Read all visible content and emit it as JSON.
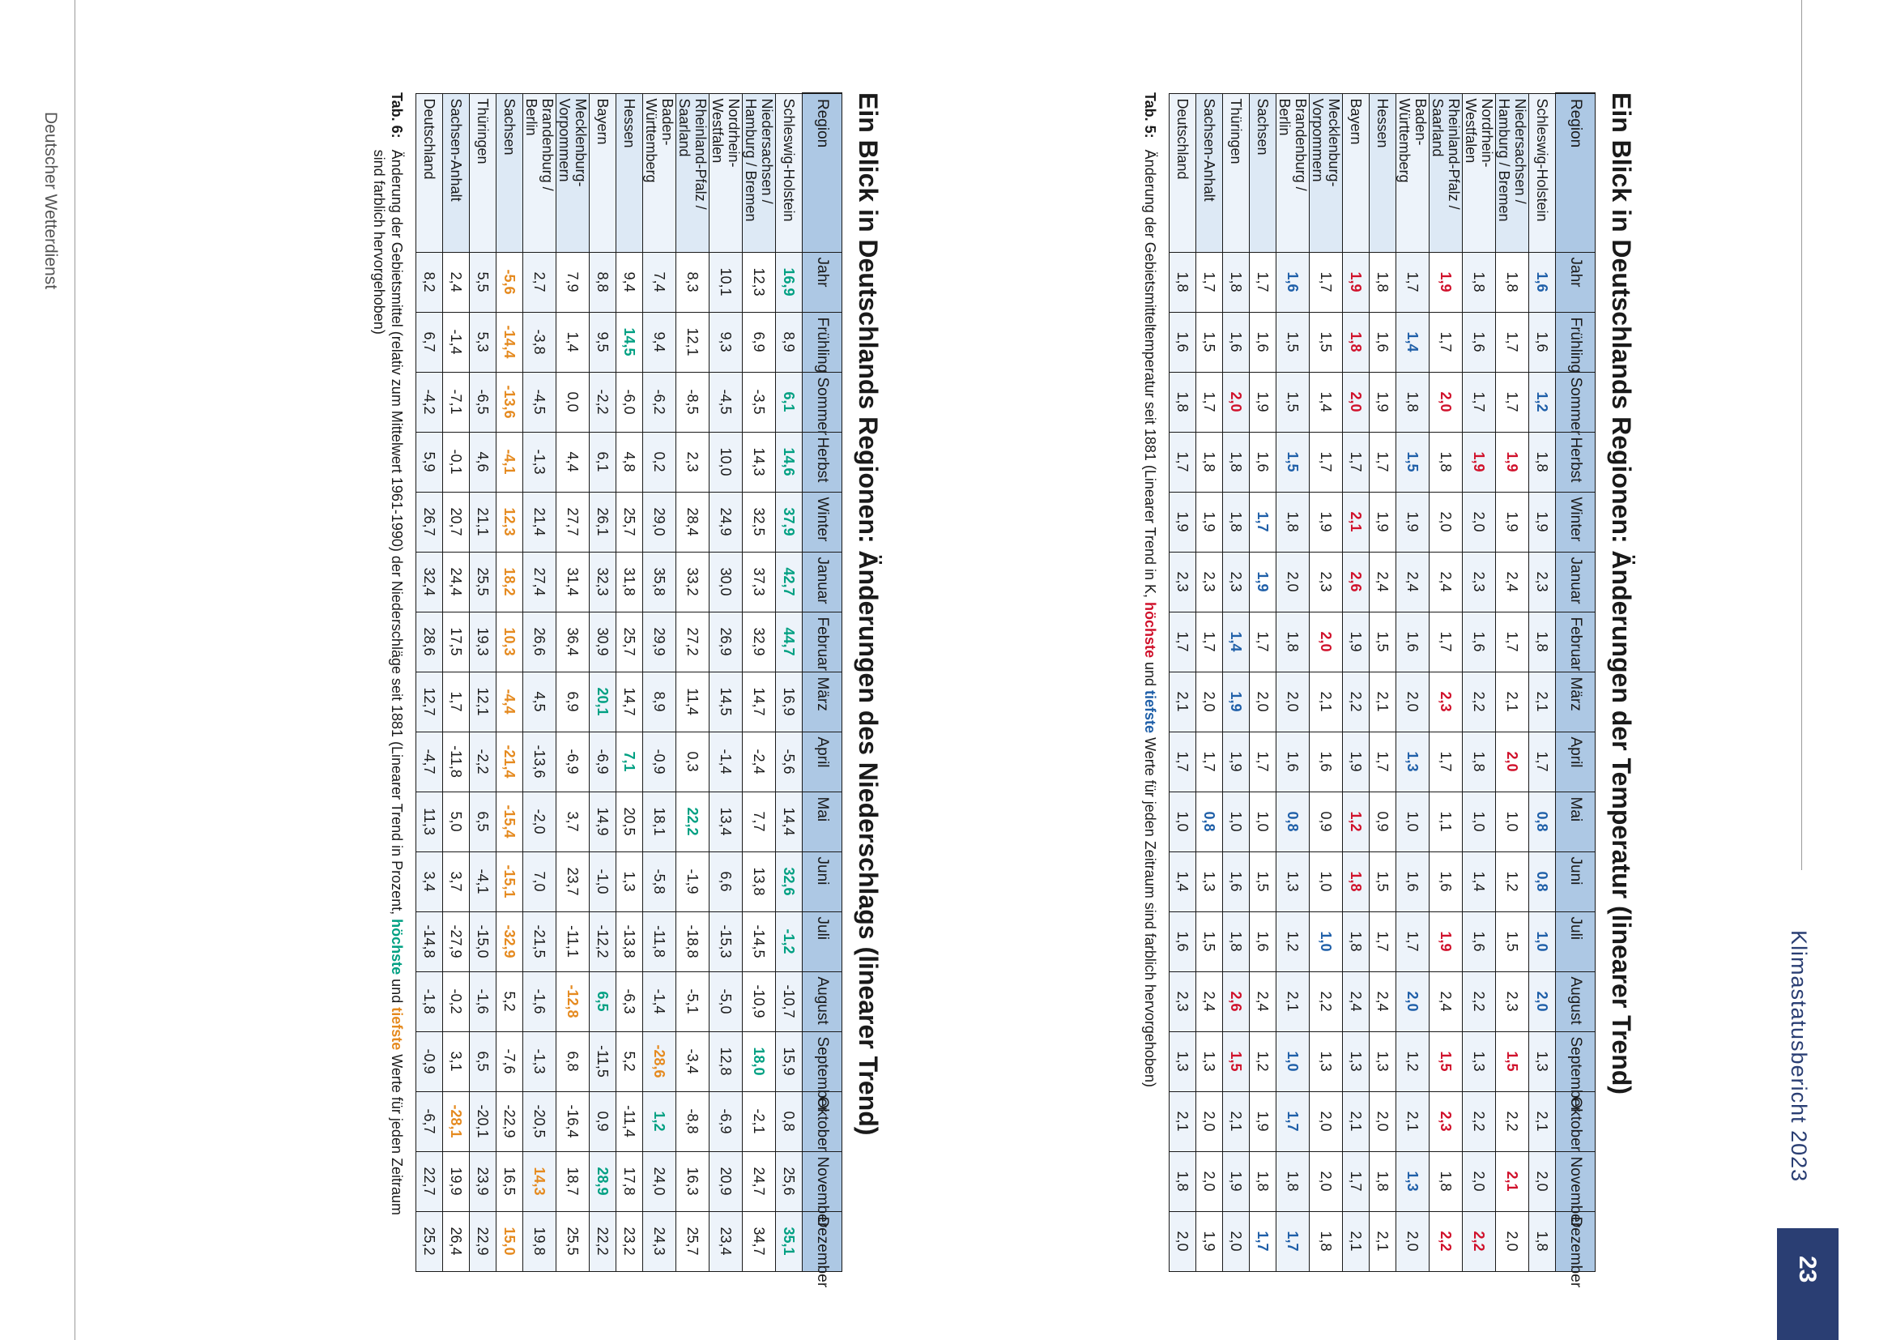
{
  "page": {
    "header_title": "Klimastatusbericht 2023",
    "page_number": "23",
    "footer": "Deutscher Wetterdienst"
  },
  "table5": {
    "title": "Ein Blick in Deutschlands Regionen: Änderungen der Temperatur (linearer Trend)",
    "columns": [
      "Region",
      "Jahr",
      "Frühling",
      "Sommer",
      "Herbst",
      "Winter",
      "Januar",
      "Februar",
      "März",
      "April",
      "Mai",
      "Juni",
      "Juli",
      "August",
      "September",
      "Oktober",
      "November",
      "Dezember"
    ],
    "rows": [
      {
        "region": [
          "Schleswig-Holstein"
        ],
        "values": [
          "1,6",
          "1,6",
          "1,2",
          "1,8",
          "1,9",
          "2,3",
          "1,8",
          "2,1",
          "1,7",
          "0,8",
          "0,8",
          "1,0",
          "2,0",
          "1,3",
          "2,1",
          "2,0",
          "1,8"
        ],
        "marks": [
          "lo",
          "",
          "lo",
          "",
          "",
          "",
          "",
          "",
          "",
          "lo",
          "lo",
          "lo",
          "lo",
          "",
          "",
          "",
          ""
        ]
      },
      {
        "region": [
          "Niedersachsen /",
          "Hamburg / Bremen"
        ],
        "values": [
          "1,8",
          "1,7",
          "1,7",
          "1,9",
          "1,9",
          "2,4",
          "1,7",
          "2,1",
          "2,0",
          "1,0",
          "1,2",
          "1,5",
          "2,3",
          "1,5",
          "2,2",
          "2,1",
          "2,0"
        ],
        "marks": [
          "",
          "",
          "",
          "hi",
          "",
          "",
          "",
          "",
          "hi",
          "",
          "",
          "",
          "",
          "hi",
          "",
          "hi",
          ""
        ]
      },
      {
        "region": [
          "Nordrhein-",
          "Westfalen"
        ],
        "values": [
          "1,8",
          "1,6",
          "1,7",
          "1,9",
          "2,0",
          "2,3",
          "1,6",
          "2,2",
          "1,8",
          "1,0",
          "1,4",
          "1,6",
          "2,2",
          "1,3",
          "2,2",
          "2,0",
          "2,2"
        ],
        "marks": [
          "",
          "",
          "",
          "hi",
          "",
          "",
          "",
          "",
          "",
          "",
          "",
          "",
          "",
          "",
          "",
          "",
          "hi"
        ]
      },
      {
        "region": [
          "Rheinland-Pfalz /",
          "Saarland"
        ],
        "values": [
          "1,9",
          "1,7",
          "2,0",
          "1,8",
          "2,0",
          "2,4",
          "1,7",
          "2,3",
          "1,7",
          "1,1",
          "1,6",
          "1,9",
          "2,4",
          "1,5",
          "2,3",
          "1,8",
          "2,2"
        ],
        "marks": [
          "hi",
          "",
          "hi",
          "",
          "",
          "",
          "",
          "hi",
          "",
          "",
          "",
          "hi",
          "",
          "hi",
          "hi",
          "",
          "hi"
        ]
      },
      {
        "region": [
          "Baden-",
          "Württemberg"
        ],
        "values": [
          "1,7",
          "1,4",
          "1,8",
          "1,5",
          "1,9",
          "2,4",
          "1,6",
          "2,0",
          "1,3",
          "1,0",
          "1,6",
          "1,7",
          "2,0",
          "1,2",
          "2,1",
          "1,3",
          "2,0"
        ],
        "marks": [
          "",
          "lo",
          "",
          "lo",
          "",
          "",
          "",
          "",
          "lo",
          "",
          "",
          "",
          "lo",
          "",
          "",
          "lo",
          ""
        ]
      },
      {
        "region": [
          "Hessen"
        ],
        "values": [
          "1,8",
          "1,6",
          "1,9",
          "1,7",
          "1,9",
          "2,4",
          "1,5",
          "2,1",
          "1,7",
          "0,9",
          "1,5",
          "1,7",
          "2,4",
          "1,3",
          "2,0",
          "1,8",
          "2,1"
        ],
        "marks": [
          "",
          "",
          "",
          "",
          "",
          "",
          "",
          "",
          "",
          "",
          "",
          "",
          "",
          "",
          "",
          "",
          ""
        ]
      },
      {
        "region": [
          "Bayern"
        ],
        "values": [
          "1,9",
          "1,8",
          "2,0",
          "1,7",
          "2,1",
          "2,6",
          "1,9",
          "2,2",
          "1,9",
          "1,2",
          "1,8",
          "1,8",
          "2,4",
          "1,3",
          "2,1",
          "1,7",
          "2,1"
        ],
        "marks": [
          "hi",
          "hi",
          "hi",
          "",
          "hi",
          "hi",
          "",
          "",
          "",
          "hi",
          "hi",
          "",
          "",
          "",
          "",
          "",
          ""
        ]
      },
      {
        "region": [
          "Mecklenburg-",
          "Vorpommern"
        ],
        "values": [
          "1,7",
          "1,5",
          "1,4",
          "1,7",
          "1,9",
          "2,3",
          "2,0",
          "2,1",
          "1,6",
          "0,9",
          "1,0",
          "1,0",
          "2,2",
          "1,3",
          "2,0",
          "2,0",
          "1,8"
        ],
        "marks": [
          "",
          "",
          "",
          "",
          "",
          "",
          "hi",
          "",
          "",
          "",
          "",
          "lo",
          "",
          "",
          "",
          "",
          ""
        ]
      },
      {
        "region": [
          "Brandenburg /",
          "Berlin"
        ],
        "values": [
          "1,6",
          "1,5",
          "1,5",
          "1,5",
          "1,8",
          "2,0",
          "1,8",
          "2,0",
          "1,6",
          "0,8",
          "1,3",
          "1,2",
          "2,1",
          "1,0",
          "1,7",
          "1,8",
          "1,7"
        ],
        "marks": [
          "lo",
          "",
          "",
          "lo",
          "",
          "",
          "",
          "",
          "",
          "lo",
          "",
          "",
          "",
          "lo",
          "lo",
          "",
          "lo"
        ]
      },
      {
        "region": [
          "Sachsen"
        ],
        "values": [
          "1,7",
          "1,6",
          "1,9",
          "1,6",
          "1,7",
          "1,9",
          "1,7",
          "2,0",
          "1,7",
          "1,0",
          "1,5",
          "1,6",
          "2,4",
          "1,2",
          "1,9",
          "1,8",
          "1,7"
        ],
        "marks": [
          "",
          "",
          "",
          "",
          "lo",
          "lo",
          "",
          "",
          "",
          "",
          "",
          "",
          "",
          "",
          "",
          "",
          "lo"
        ]
      },
      {
        "region": [
          "Thüringen"
        ],
        "values": [
          "1,8",
          "1,6",
          "2,0",
          "1,8",
          "1,8",
          "2,3",
          "1,4",
          "1,9",
          "1,9",
          "1,0",
          "1,6",
          "1,8",
          "2,6",
          "1,5",
          "2,1",
          "1,9",
          "2,0"
        ],
        "marks": [
          "",
          "",
          "hi",
          "",
          "",
          "",
          "lo",
          "lo",
          "",
          "",
          "",
          "",
          "hi",
          "hi",
          "",
          "",
          ""
        ]
      },
      {
        "region": [
          "Sachsen-Anhalt"
        ],
        "values": [
          "1,7",
          "1,5",
          "1,7",
          "1,8",
          "1,9",
          "2,3",
          "1,7",
          "2,0",
          "1,7",
          "0,8",
          "1,3",
          "1,5",
          "2,4",
          "1,3",
          "2,0",
          "2,0",
          "1,9"
        ],
        "marks": [
          "",
          "",
          "",
          "",
          "",
          "",
          "",
          "",
          "",
          "lo",
          "",
          "",
          "",
          "",
          "",
          "",
          ""
        ]
      },
      {
        "region": [
          "Deutschland"
        ],
        "values": [
          "1,8",
          "1,6",
          "1,8",
          "1,7",
          "1,9",
          "2,3",
          "1,7",
          "2,1",
          "1,7",
          "1,0",
          "1,4",
          "1,6",
          "2,3",
          "1,3",
          "2,1",
          "1,8",
          "2,0"
        ],
        "marks": [
          "",
          "",
          "",
          "",
          "",
          "",
          "",
          "",
          "",
          "",
          "",
          "",
          "",
          "",
          "",
          "",
          ""
        ]
      }
    ],
    "caption_label": "Tab. 5:",
    "caption_pre": "Änderung der Gebietsmitteltemperatur seit 1881 (Linearer Trend in K, ",
    "caption_high": "höchste",
    "caption_mid": " und ",
    "caption_low": "tiefste",
    "caption_post": " Werte für jeden Zeitraum sind farblich hervorgehoben)"
  },
  "table6": {
    "title": "Ein Blick in Deutschlands Regionen: Änderungen des Niederschlags (linearer Trend)",
    "columns": [
      "Region",
      "Jahr",
      "Frühling",
      "Sommer",
      "Herbst",
      "Winter",
      "Januar",
      "Februar",
      "März",
      "April",
      "Mai",
      "Juni",
      "Juli",
      "August",
      "September",
      "Oktober",
      "November",
      "Dezember"
    ],
    "rows": [
      {
        "region": [
          "Schleswig-Holstein"
        ],
        "values": [
          "16,9",
          "8,9",
          "6,1",
          "14,6",
          "37,9",
          "42,7",
          "44,7",
          "16,9",
          "-5,6",
          "14,4",
          "32,6",
          "-1,2",
          "-10,7",
          "15,9",
          "0,8",
          "25,6",
          "35,1"
        ],
        "marks": [
          "hi",
          "",
          "hi",
          "hi",
          "hi",
          "hi",
          "hi",
          "",
          "",
          "",
          "hi",
          "hi",
          "",
          "",
          "",
          "",
          "hi"
        ]
      },
      {
        "region": [
          "Niedersachsen /",
          "Hamburg / Bremen"
        ],
        "values": [
          "12,3",
          "6,9",
          "-3,5",
          "14,3",
          "32,5",
          "37,3",
          "32,9",
          "14,7",
          "-2,4",
          "7,7",
          "13,8",
          "-14,5",
          "-10,9",
          "18,0",
          "-2,1",
          "24,7",
          "34,7"
        ],
        "marks": [
          "",
          "",
          "",
          "",
          "",
          "",
          "",
          "",
          "",
          "",
          "",
          "",
          "",
          "hi",
          "",
          "",
          ""
        ]
      },
      {
        "region": [
          "Nordrhein-",
          "Westfalen"
        ],
        "values": [
          "10,1",
          "9,3",
          "-4,5",
          "10,0",
          "24,9",
          "30,0",
          "26,9",
          "14,5",
          "-1,4",
          "13,4",
          "6,6",
          "-15,3",
          "-5,0",
          "12,8",
          "-6,9",
          "20,9",
          "23,4"
        ],
        "marks": [
          "",
          "",
          "",
          "",
          "",
          "",
          "",
          "",
          "",
          "",
          "",
          "",
          "",
          "",
          "",
          "",
          ""
        ]
      },
      {
        "region": [
          "Rheinland-Pfalz /",
          "Saarland"
        ],
        "values": [
          "8,3",
          "12,1",
          "-8,5",
          "2,3",
          "28,4",
          "33,2",
          "27,2",
          "11,4",
          "0,3",
          "22,2",
          "-1,9",
          "-18,8",
          "-5,1",
          "-3,4",
          "-8,8",
          "16,3",
          "25,7"
        ],
        "marks": [
          "",
          "",
          "",
          "",
          "",
          "",
          "",
          "",
          "",
          "hi",
          "",
          "",
          "",
          "",
          "",
          "",
          ""
        ]
      },
      {
        "region": [
          "Baden-",
          "Württemberg"
        ],
        "values": [
          "7,4",
          "9,4",
          "-6,2",
          "0,2",
          "29,0",
          "35,8",
          "29,9",
          "8,9",
          "-0,9",
          "18,1",
          "-5,8",
          "-11,8",
          "-1,4",
          "-28,6",
          "1,2",
          "24,0",
          "24,3"
        ],
        "marks": [
          "",
          "",
          "",
          "",
          "",
          "",
          "",
          "",
          "",
          "",
          "",
          "",
          "",
          "lo",
          "hi",
          "",
          ""
        ]
      },
      {
        "region": [
          "Hessen"
        ],
        "values": [
          "9,4",
          "14,5",
          "-6,0",
          "4,8",
          "25,7",
          "31,8",
          "25,7",
          "14,7",
          "7,1",
          "20,5",
          "1,3",
          "-13,8",
          "-6,3",
          "5,2",
          "-11,4",
          "17,8",
          "23,2"
        ],
        "marks": [
          "",
          "hi",
          "",
          "",
          "",
          "",
          "",
          "",
          "hi",
          "",
          "",
          "",
          "",
          "",
          "",
          "",
          ""
        ]
      },
      {
        "region": [
          "Bayern"
        ],
        "values": [
          "8,8",
          "9,5",
          "-2,2",
          "6,1",
          "26,1",
          "32,3",
          "30,9",
          "20,1",
          "-6,9",
          "14,9",
          "-1,0",
          "-12,2",
          "6,5",
          "-11,5",
          "0,9",
          "28,9",
          "22,2"
        ],
        "marks": [
          "",
          "",
          "",
          "",
          "",
          "",
          "",
          "hi",
          "",
          "",
          "",
          "",
          "hi",
          "",
          "",
          "hi",
          ""
        ]
      },
      {
        "region": [
          "Mecklenburg-",
          "Vorpommern"
        ],
        "values": [
          "7,9",
          "1,4",
          "0,0",
          "4,4",
          "27,7",
          "31,4",
          "36,4",
          "6,9",
          "-6,9",
          "3,7",
          "23,7",
          "-11,1",
          "-12,8",
          "6,8",
          "-16,4",
          "18,7",
          "25,5"
        ],
        "marks": [
          "",
          "",
          "",
          "",
          "",
          "",
          "",
          "",
          "",
          "",
          "",
          "",
          "lo",
          "",
          "",
          "",
          ""
        ]
      },
      {
        "region": [
          "Brandenburg /",
          "Berlin"
        ],
        "values": [
          "2,7",
          "-3,8",
          "-4,5",
          "-1,3",
          "21,4",
          "27,4",
          "26,6",
          "4,5",
          "-13,6",
          "-2,0",
          "7,0",
          "-21,5",
          "-1,6",
          "-1,3",
          "-20,5",
          "14,3",
          "19,8"
        ],
        "marks": [
          "",
          "",
          "",
          "",
          "",
          "",
          "",
          "",
          "",
          "",
          "",
          "",
          "",
          "",
          "",
          "lo",
          ""
        ]
      },
      {
        "region": [
          "Sachsen"
        ],
        "values": [
          "-5,6",
          "-14,4",
          "-13,6",
          "-4,1",
          "12,3",
          "18,2",
          "10,3",
          "-4,4",
          "-21,4",
          "-15,4",
          "-15,1",
          "-32,9",
          "5,2",
          "-7,6",
          "-22,9",
          "16,5",
          "15,0"
        ],
        "marks": [
          "lo",
          "lo",
          "lo",
          "lo",
          "lo",
          "lo",
          "lo",
          "lo",
          "lo",
          "lo",
          "lo",
          "lo",
          "",
          "",
          "",
          "",
          "lo"
        ]
      },
      {
        "region": [
          "Thüringen"
        ],
        "values": [
          "5,5",
          "5,3",
          "-6,5",
          "4,6",
          "21,1",
          "25,5",
          "19,3",
          "12,1",
          "-2,2",
          "6,5",
          "-4,1",
          "-15,0",
          "-1,6",
          "6,5",
          "-20,1",
          "23,9",
          "22,9"
        ],
        "marks": [
          "",
          "",
          "",
          "",
          "",
          "",
          "",
          "",
          "",
          "",
          "",
          "",
          "",
          "",
          "",
          "",
          ""
        ]
      },
      {
        "region": [
          "Sachsen-Anhalt"
        ],
        "values": [
          "2,4",
          "-1,4",
          "-7,1",
          "-0,1",
          "20,7",
          "24,4",
          "17,5",
          "1,7",
          "-11,8",
          "5,0",
          "3,7",
          "-27,9",
          "-0,2",
          "3,1",
          "-28,1",
          "19,9",
          "26,4"
        ],
        "marks": [
          "",
          "",
          "",
          "",
          "",
          "",
          "",
          "",
          "",
          "",
          "",
          "",
          "",
          "",
          "lo",
          "",
          ""
        ]
      },
      {
        "region": [
          "Deutschland"
        ],
        "values": [
          "8,2",
          "6,7",
          "-4,2",
          "5,9",
          "26,7",
          "32,4",
          "28,6",
          "12,7",
          "-4,7",
          "11,3",
          "3,4",
          "-14,8",
          "-1,8",
          "-0,9",
          "-6,7",
          "22,7",
          "25,2"
        ],
        "marks": [
          "",
          "",
          "",
          "",
          "",
          "",
          "",
          "",
          "",
          "",
          "",
          "",
          "",
          "",
          "",
          "",
          ""
        ]
      }
    ],
    "caption_label": "Tab. 6:",
    "caption_pre": "Änderung der Gebietsmittel (relativ zum Mittelwert 1961-1990) der Niederschläge seit 1881 (Linearer Trend in Prozent, ",
    "caption_high": "höchste",
    "caption_mid": " und ",
    "caption_low": "tiefste",
    "caption_post": " Werte für jeden Zeitraum sind farblich hervorgehoben)"
  }
}
